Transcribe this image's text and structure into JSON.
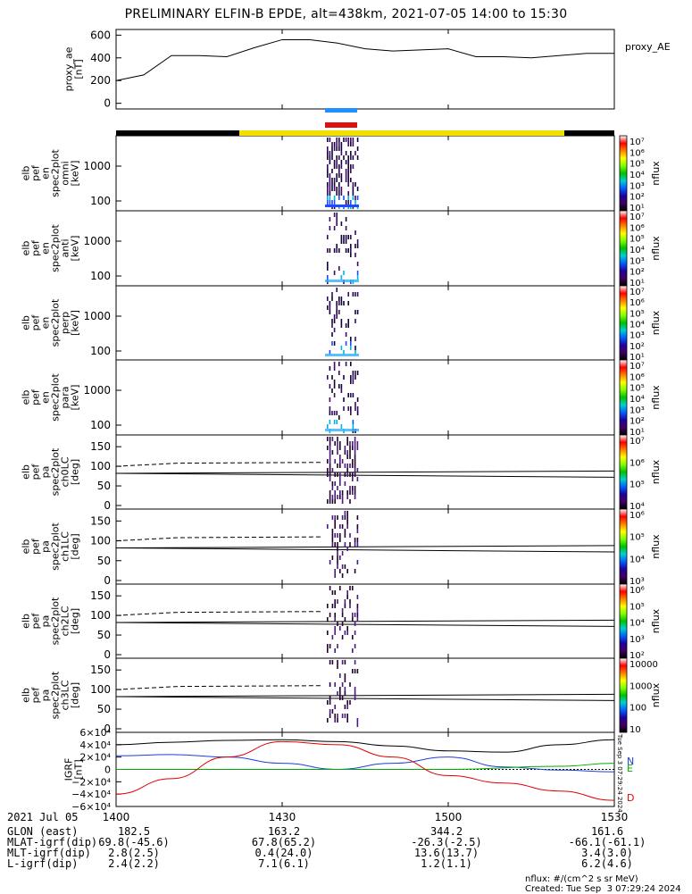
{
  "title": "PRELIMINARY ELFIN-B EPDE, alt=438km, 2021-07-05 14:00 to 15:30",
  "chart_data": {
    "type": "line",
    "time_range": [
      "14:00",
      "15:30"
    ],
    "x_ticks": [
      "1400",
      "1430",
      "1500",
      "1530"
    ],
    "panels": [
      {
        "id": "proxy_ae",
        "ylabel": [
          "proxy_ae",
          "[nT]"
        ],
        "legend": "proxy_AE",
        "ylim": [
          -50,
          650
        ],
        "y_ticks": [
          "600",
          "400",
          "200",
          "0"
        ],
        "series": [
          {
            "name": "proxy_AE",
            "x": [
              0,
              5,
              10,
              15,
              20,
              25,
              30,
              35,
              40,
              45,
              50,
              55,
              60,
              65,
              70,
              75,
              80,
              85,
              90
            ],
            "y": [
              200,
              250,
              420,
              420,
              410,
              490,
              560,
              560,
              530,
              480,
              460,
              470,
              480,
              410,
              410,
              400,
              420,
              440,
              440
            ]
          }
        ]
      },
      {
        "id": "omni",
        "ylabel": [
          "elb",
          "pef",
          "en",
          "spec2plot",
          "omni",
          "[keV]"
        ],
        "y_ticks": [
          "1000",
          "100"
        ],
        "cbar_top": "10<sup>7</sup>",
        "cbar_label": "nflux"
      },
      {
        "id": "anti",
        "ylabel": [
          "elb",
          "pef",
          "en",
          "spec2plot",
          "anti",
          "[keV]"
        ],
        "y_ticks": [
          "1000",
          "100"
        ],
        "cbar_top": "10<sup>7</sup>",
        "cbar_label": "nflux"
      },
      {
        "id": "perp",
        "ylabel": [
          "elb",
          "pef",
          "en",
          "spec2plot",
          "perp",
          "[keV]"
        ],
        "y_ticks": [
          "1000",
          "100"
        ],
        "cbar_top": "10<sup>7</sup>",
        "cbar_label": "nflux"
      },
      {
        "id": "para",
        "ylabel": [
          "elb",
          "pef",
          "en",
          "spec2plot",
          "para",
          "[keV]"
        ],
        "y_ticks": [
          "1000",
          "100"
        ],
        "cbar_top": "10<sup>7</sup>",
        "cbar_label": "nflux"
      },
      {
        "id": "ch0LC",
        "ylabel": [
          "elb",
          "pef",
          "pa",
          "spec2plot",
          "ch0LC",
          "[deg]"
        ],
        "y_ticks": [
          "150",
          "100",
          "50",
          "0"
        ],
        "cbar_label": "nflux"
      },
      {
        "id": "ch1LC",
        "ylabel": [
          "elb",
          "pef",
          "pa",
          "spec2plot",
          "ch1LC",
          "[deg]"
        ],
        "y_ticks": [
          "150",
          "100",
          "50",
          "0"
        ],
        "cbar_label": "nflux"
      },
      {
        "id": "ch2LC",
        "ylabel": [
          "elb",
          "pef",
          "pa",
          "spec2plot",
          "ch2LC",
          "[deg]"
        ],
        "y_ticks": [
          "150",
          "100",
          "50",
          "0"
        ],
        "cbar_label": "nflux"
      },
      {
        "id": "ch3LC",
        "ylabel": [
          "elb",
          "pef",
          "pa",
          "spec2plot",
          "ch3LC",
          "[deg]"
        ],
        "y_ticks": [
          "150",
          "100",
          "50",
          "0"
        ],
        "cbar_label": "nflux"
      },
      {
        "id": "igrf",
        "ylabel": [
          "IGRF",
          "[nT]"
        ],
        "y_ticks": [
          "6×10⁴",
          "4×10⁴",
          "2×10⁴",
          "0",
          "−2×10⁴",
          "−4×10⁴",
          "−6×10⁴"
        ],
        "ylim": [
          -60000,
          60000
        ],
        "legend": [
          "N",
          "E",
          "D"
        ],
        "series": [
          {
            "name": "N",
            "color": "#1f3fd6",
            "x": [
              0,
              10,
              20,
              30,
              40,
              50,
              60,
              70,
              80,
              90
            ],
            "y": [
              22000,
              24000,
              20000,
              10000,
              0,
              10000,
              20000,
              4000,
              -1000,
              -4000
            ]
          },
          {
            "name": "E",
            "color": "#00aa00",
            "x": [
              0,
              20,
              40,
              60,
              80,
              90
            ],
            "y": [
              0,
              0,
              0,
              0,
              5000,
              10000
            ]
          },
          {
            "name": "D",
            "color": "#e00000",
            "x": [
              0,
              10,
              20,
              30,
              40,
              50,
              60,
              70,
              80,
              90
            ],
            "y": [
              -40000,
              -15000,
              20000,
              45000,
              40000,
              20000,
              -10000,
              -22000,
              -35000,
              -50000
            ]
          },
          {
            "name": "total",
            "color": "#000000",
            "x": [
              0,
              10,
              20,
              30,
              40,
              50,
              60,
              70,
              80,
              90
            ],
            "y": [
              40000,
              44000,
              47000,
              48000,
              45000,
              38000,
              30000,
              28000,
              40000,
              48000
            ]
          }
        ]
      }
    ],
    "colorbars": [
      {
        "ticks": [
          "10⁷",
          "10⁶",
          "10⁵",
          "10⁴",
          "10³",
          "10²",
          "10¹"
        ]
      },
      {
        "ticks": [
          "10⁷",
          "10⁶",
          "10⁵",
          "10⁴",
          "10³",
          "10²",
          "10¹"
        ]
      },
      {
        "ticks": [
          "10⁷",
          "10⁶",
          "10⁵",
          "10⁴",
          "10³",
          "10²",
          "10¹"
        ]
      },
      {
        "ticks": [
          "10⁷",
          "10⁶",
          "10⁵",
          "10⁴",
          "10³",
          "10²",
          "10¹"
        ]
      },
      {
        "ticks": [
          "10⁷",
          "10⁶",
          "10⁵",
          "10⁴"
        ]
      },
      {
        "ticks": [
          "10⁶",
          "10⁵",
          "10⁴",
          "10³"
        ]
      },
      {
        "ticks": [
          "10⁶",
          "10⁵",
          "10⁴",
          "10³",
          "10²"
        ]
      },
      {
        "ticks": [
          "10000",
          "1000",
          "100",
          "10"
        ]
      }
    ]
  },
  "ephemeris": {
    "date": "2021 Jul 05",
    "rows": [
      {
        "label": "GLON (east)",
        "values": [
          "182.5",
          "163.2",
          "344.2",
          "161.6"
        ]
      },
      {
        "label": "MLAT-igrf(dip)",
        "values": [
          "69.8(-45.6)",
          "67.8(65.2)",
          "-26.3(-2.5)",
          "-66.1(-61.1)"
        ]
      },
      {
        "label": "MLT-igrf(dip)",
        "values": [
          "2.8(2.5)",
          "0.4(24.0)",
          "13.6(13.7)",
          "3.4(3.0)"
        ]
      },
      {
        "label": "L-igrf(dip)",
        "values": [
          "2.4(2.2)",
          "7.1(6.1)",
          "1.2(1.1)",
          "6.2(4.6)"
        ]
      }
    ]
  },
  "footer": {
    "units": "nflux: #/(cm^2 s sr MeV)",
    "created": "Created: Tue Sep  3 07:29:24 2024",
    "side_stamp": "Tue Sep  3 07:29:24 2024"
  },
  "colors": {
    "bar_day": "#f0e000",
    "bar_night": "#000000",
    "marker_blue": "#1e90ff",
    "marker_red": "#e01010"
  }
}
